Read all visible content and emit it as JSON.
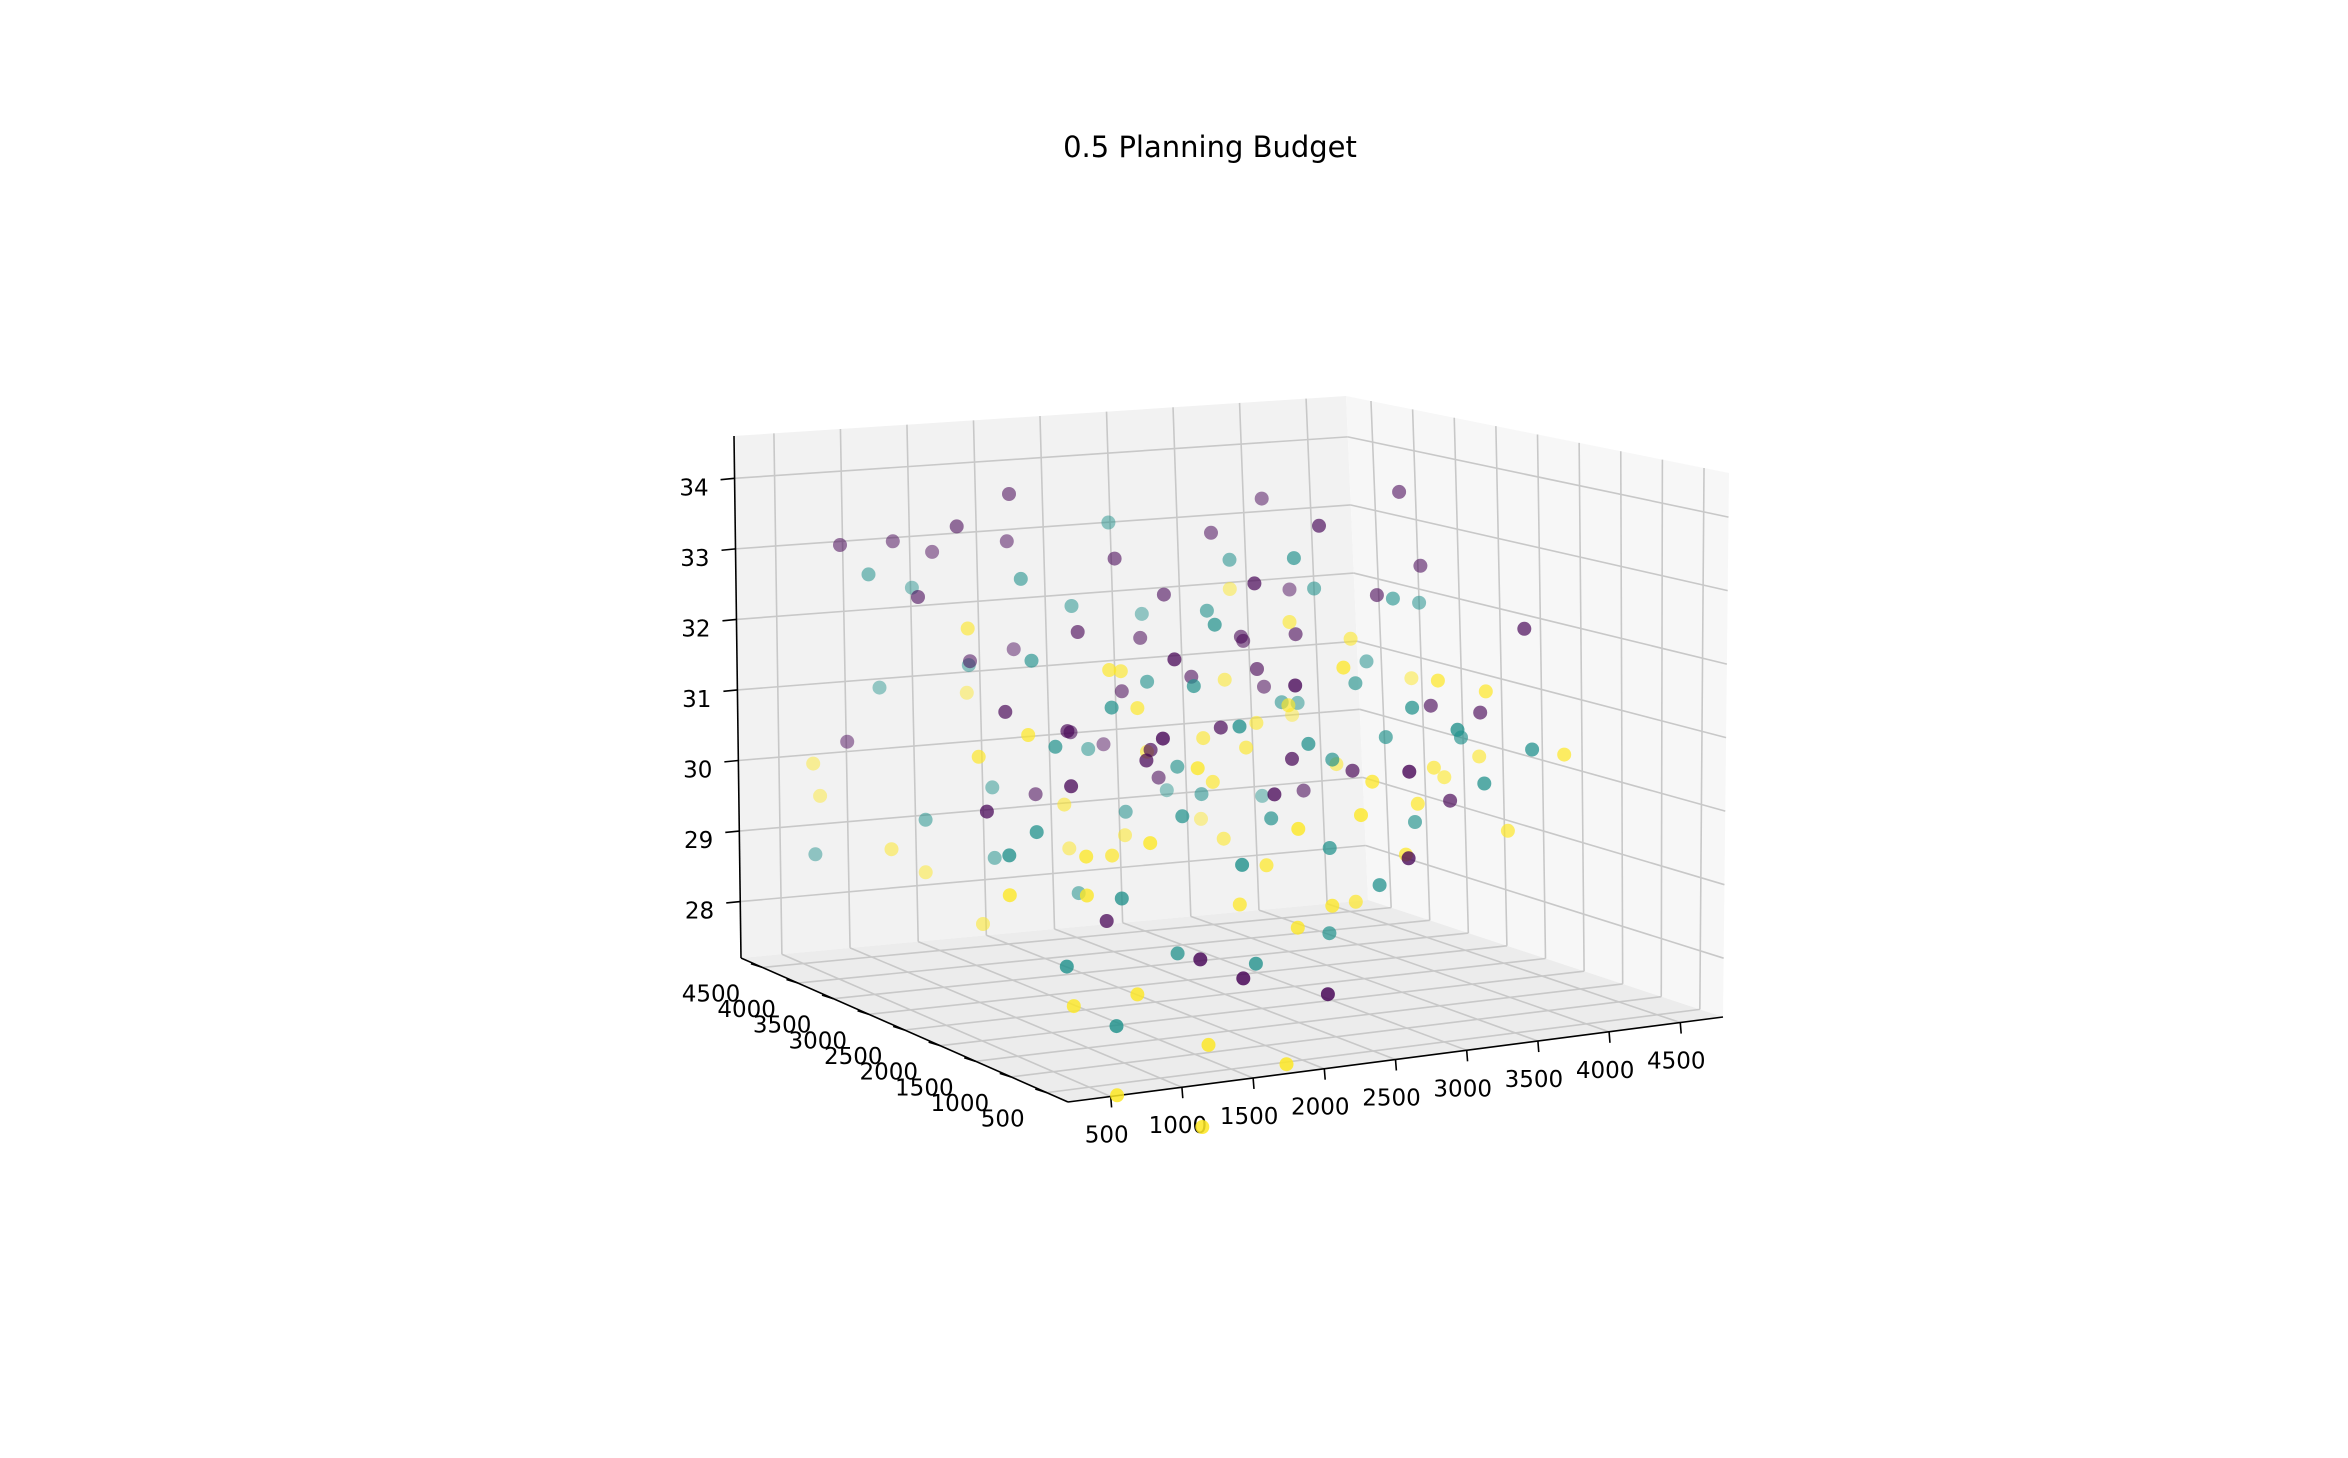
{
  "chart_data": {
    "type": "scatter",
    "title": "0.5 Planning Budget",
    "xlabel": "",
    "ylabel": "",
    "zlabel": "",
    "grid": true,
    "legend": "none",
    "xlim": [
      200,
      4800
    ],
    "ylim": [
      200,
      4800
    ],
    "zlim": [
      27.2,
      34.6
    ],
    "x_ticks": [
      "500",
      "1000",
      "1500",
      "2000",
      "2500",
      "3000",
      "3500",
      "4000",
      "4500"
    ],
    "y_ticks": [
      "500",
      "1000",
      "1500",
      "2000",
      "2500",
      "3000",
      "3500",
      "4000",
      "4500"
    ],
    "z_ticks": [
      "28",
      "29",
      "30",
      "31",
      "32",
      "33",
      "34"
    ],
    "colors": {
      "purple": "#440154",
      "teal": "#21918c",
      "yellow": "#fde725"
    },
    "points": [
      {
        "x": 1100,
        "y": 4300,
        "z": 33.0,
        "c": "purple"
      },
      {
        "x": 1500,
        "y": 4500,
        "z": 32.8,
        "c": "purple"
      },
      {
        "x": 2700,
        "y": 4300,
        "z": 33.1,
        "c": "teal"
      },
      {
        "x": 2300,
        "y": 4100,
        "z": 32.0,
        "c": "teal"
      },
      {
        "x": 1600,
        "y": 4200,
        "z": 31.3,
        "c": "purple"
      },
      {
        "x": 1700,
        "y": 4400,
        "z": 31.2,
        "c": "teal"
      },
      {
        "x": 3400,
        "y": 4200,
        "z": 32.9,
        "c": "purple"
      },
      {
        "x": 3900,
        "y": 4400,
        "z": 33.3,
        "c": "purple"
      },
      {
        "x": 3000,
        "y": 3800,
        "z": 31.0,
        "c": "purple"
      },
      {
        "x": 2600,
        "y": 4000,
        "z": 30.8,
        "c": "purple"
      },
      {
        "x": 3500,
        "y": 4000,
        "z": 31.4,
        "c": "purple"
      },
      {
        "x": 3300,
        "y": 3900,
        "z": 30.9,
        "c": "yellow"
      },
      {
        "x": 2800,
        "y": 4100,
        "z": 31.5,
        "c": "purple"
      },
      {
        "x": 1200,
        "y": 4100,
        "z": 29.2,
        "c": "teal"
      },
      {
        "x": 1800,
        "y": 4300,
        "z": 29.5,
        "c": "teal"
      },
      {
        "x": 1000,
        "y": 4200,
        "z": 28.8,
        "c": "yellow"
      },
      {
        "x": 1300,
        "y": 4300,
        "z": 28.4,
        "c": "yellow"
      },
      {
        "x": 1700,
        "y": 4100,
        "z": 28.6,
        "c": "teal"
      },
      {
        "x": 2300,
        "y": 4200,
        "z": 28.6,
        "c": "yellow"
      },
      {
        "x": 1500,
        "y": 3900,
        "z": 27.8,
        "c": "yellow"
      },
      {
        "x": 2400,
        "y": 4100,
        "z": 30.0,
        "c": "teal"
      },
      {
        "x": 2800,
        "y": 3900,
        "z": 29.6,
        "c": "purple"
      },
      {
        "x": 2500,
        "y": 3800,
        "z": 29.2,
        "c": "teal"
      },
      {
        "x": 2000,
        "y": 3700,
        "z": 29.4,
        "c": "yellow"
      },
      {
        "x": 2200,
        "y": 3900,
        "z": 28.1,
        "c": "teal"
      },
      {
        "x": 2600,
        "y": 4000,
        "z": 28.8,
        "c": "yellow"
      },
      {
        "x": 1900,
        "y": 3900,
        "z": 29.5,
        "c": "purple"
      },
      {
        "x": 3100,
        "y": 3600,
        "z": 28.8,
        "c": "yellow"
      },
      {
        "x": 3000,
        "y": 3700,
        "z": 29.4,
        "c": "teal"
      },
      {
        "x": 2000,
        "y": 3600,
        "z": 30.4,
        "c": "purple"
      },
      {
        "x": 2500,
        "y": 3500,
        "z": 30.1,
        "c": "yellow"
      },
      {
        "x": 3300,
        "y": 3500,
        "z": 30.4,
        "c": "yellow"
      },
      {
        "x": 3600,
        "y": 3700,
        "z": 30.6,
        "c": "teal"
      },
      {
        "x": 3200,
        "y": 3300,
        "z": 31.2,
        "c": "purple"
      },
      {
        "x": 3800,
        "y": 3600,
        "z": 32.2,
        "c": "teal"
      },
      {
        "x": 3500,
        "y": 3400,
        "z": 31.8,
        "c": "yellow"
      },
      {
        "x": 3600,
        "y": 3500,
        "z": 31.6,
        "c": "purple"
      },
      {
        "x": 4000,
        "y": 3500,
        "z": 31.5,
        "c": "yellow"
      },
      {
        "x": 4200,
        "y": 3300,
        "z": 32.1,
        "c": "teal"
      },
      {
        "x": 4500,
        "y": 3700,
        "z": 33.5,
        "c": "purple"
      },
      {
        "x": 4200,
        "y": 3500,
        "z": 32.1,
        "c": "purple"
      },
      {
        "x": 4700,
        "y": 3800,
        "z": 32.4,
        "c": "purple"
      },
      {
        "x": 4400,
        "y": 3200,
        "z": 30.6,
        "c": "purple"
      },
      {
        "x": 4300,
        "y": 3000,
        "z": 29.8,
        "c": "yellow"
      },
      {
        "x": 3900,
        "y": 2900,
        "z": 30.3,
        "c": "teal"
      },
      {
        "x": 3600,
        "y": 2800,
        "z": 29.9,
        "c": "purple"
      },
      {
        "x": 4100,
        "y": 2900,
        "z": 29.1,
        "c": "teal"
      },
      {
        "x": 4600,
        "y": 3400,
        "z": 29.5,
        "c": "yellow"
      },
      {
        "x": 4700,
        "y": 3100,
        "z": 30.5,
        "c": "purple"
      },
      {
        "x": 4500,
        "y": 3000,
        "z": 30.2,
        "c": "teal"
      },
      {
        "x": 4800,
        "y": 3300,
        "z": 29.8,
        "c": "yellow"
      },
      {
        "x": 4600,
        "y": 2600,
        "z": 29.0,
        "c": "yellow"
      },
      {
        "x": 4300,
        "y": 2800,
        "z": 29.4,
        "c": "purple"
      },
      {
        "x": 3800,
        "y": 3100,
        "z": 31.0,
        "c": "teal"
      },
      {
        "x": 3400,
        "y": 2700,
        "z": 30.1,
        "c": "teal"
      },
      {
        "x": 3200,
        "y": 2900,
        "z": 30.8,
        "c": "yellow"
      },
      {
        "x": 3000,
        "y": 2500,
        "z": 30.2,
        "c": "purple"
      },
      {
        "x": 2900,
        "y": 2600,
        "z": 29.4,
        "c": "teal"
      },
      {
        "x": 2700,
        "y": 3000,
        "z": 29.8,
        "c": "yellow"
      },
      {
        "x": 2600,
        "y": 2700,
        "z": 30.6,
        "c": "purple"
      },
      {
        "x": 2300,
        "y": 2500,
        "z": 31.2,
        "c": "teal"
      },
      {
        "x": 2000,
        "y": 2700,
        "z": 30.9,
        "c": "yellow"
      },
      {
        "x": 1900,
        "y": 2400,
        "z": 30.3,
        "c": "purple"
      },
      {
        "x": 2100,
        "y": 2300,
        "z": 29.6,
        "c": "teal"
      },
      {
        "x": 1700,
        "y": 2500,
        "z": 29.1,
        "c": "yellow"
      },
      {
        "x": 1500,
        "y": 2200,
        "z": 28.4,
        "c": "purple"
      },
      {
        "x": 1900,
        "y": 2000,
        "z": 28.0,
        "c": "teal"
      },
      {
        "x": 2400,
        "y": 2100,
        "z": 28.5,
        "c": "yellow"
      },
      {
        "x": 2700,
        "y": 2300,
        "z": 28.9,
        "c": "yellow"
      },
      {
        "x": 3100,
        "y": 2200,
        "z": 29.1,
        "c": "teal"
      },
      {
        "x": 3400,
        "y": 2100,
        "z": 28.6,
        "c": "teal"
      },
      {
        "x": 3700,
        "y": 2300,
        "z": 28.9,
        "c": "yellow"
      },
      {
        "x": 3900,
        "y": 2500,
        "z": 29.5,
        "c": "yellow"
      },
      {
        "x": 3500,
        "y": 1900,
        "z": 29.0,
        "c": "purple"
      },
      {
        "x": 2900,
        "y": 1800,
        "z": 28.5,
        "c": "yellow"
      },
      {
        "x": 2600,
        "y": 1700,
        "z": 28.3,
        "c": "yellow"
      },
      {
        "x": 2300,
        "y": 1700,
        "z": 27.9,
        "c": "teal"
      },
      {
        "x": 1800,
        "y": 1500,
        "z": 28.1,
        "c": "purple"
      },
      {
        "x": 1300,
        "y": 1400,
        "z": 27.8,
        "c": "yellow"
      },
      {
        "x": 1100,
        "y": 1300,
        "z": 27.5,
        "c": "teal"
      },
      {
        "x": 900,
        "y": 1500,
        "z": 27.7,
        "c": "yellow"
      },
      {
        "x": 1000,
        "y": 1100,
        "z": 26.8,
        "c": "yellow"
      },
      {
        "x": 1700,
        "y": 1200,
        "z": 27.2,
        "c": "yellow"
      },
      {
        "x": 1500,
        "y": 900,
        "z": 26.4,
        "c": "yellow"
      },
      {
        "x": 2200,
        "y": 1100,
        "z": 26.9,
        "c": "yellow"
      },
      {
        "x": 2600,
        "y": 1300,
        "z": 27.6,
        "c": "purple"
      },
      {
        "x": 2000,
        "y": 1300,
        "z": 27.9,
        "c": "purple"
      },
      {
        "x": 1400,
        "y": 1800,
        "z": 28.8,
        "c": "teal"
      },
      {
        "x": 1200,
        "y": 1900,
        "z": 29.3,
        "c": "yellow"
      },
      {
        "x": 900,
        "y": 2000,
        "z": 29.6,
        "c": "teal"
      },
      {
        "x": 700,
        "y": 2300,
        "z": 29.8,
        "c": "purple"
      },
      {
        "x": 800,
        "y": 2600,
        "z": 30.4,
        "c": "yellow"
      },
      {
        "x": 1100,
        "y": 2800,
        "z": 30.9,
        "c": "purple"
      },
      {
        "x": 1400,
        "y": 3000,
        "z": 31.5,
        "c": "teal"
      },
      {
        "x": 1100,
        "y": 3300,
        "z": 31.9,
        "c": "yellow"
      },
      {
        "x": 900,
        "y": 3600,
        "z": 32.3,
        "c": "purple"
      },
      {
        "x": 700,
        "y": 3900,
        "z": 32.6,
        "c": "teal"
      },
      {
        "x": 600,
        "y": 4100,
        "z": 33.0,
        "c": "purple"
      },
      {
        "x": 1300,
        "y": 3800,
        "z": 33.2,
        "c": "purple"
      },
      {
        "x": 1600,
        "y": 3500,
        "z": 32.5,
        "c": "teal"
      },
      {
        "x": 1900,
        "y": 3300,
        "z": 31.8,
        "c": "purple"
      },
      {
        "x": 2100,
        "y": 3100,
        "z": 31.3,
        "c": "yellow"
      },
      {
        "x": 2400,
        "y": 3300,
        "z": 31.1,
        "c": "teal"
      },
      {
        "x": 2200,
        "y": 2900,
        "z": 30.3,
        "c": "purple"
      },
      {
        "x": 2500,
        "y": 3100,
        "z": 30.0,
        "c": "teal"
      },
      {
        "x": 2800,
        "y": 3300,
        "z": 30.3,
        "c": "yellow"
      },
      {
        "x": 3000,
        "y": 3100,
        "z": 30.2,
        "c": "yellow"
      },
      {
        "x": 3200,
        "y": 3500,
        "z": 31.6,
        "c": "purple"
      },
      {
        "x": 2900,
        "y": 3400,
        "z": 32.0,
        "c": "teal"
      },
      {
        "x": 2700,
        "y": 3600,
        "z": 32.2,
        "c": "purple"
      },
      {
        "x": 2400,
        "y": 3700,
        "z": 32.7,
        "c": "purple"
      },
      {
        "x": 3300,
        "y": 3800,
        "z": 32.6,
        "c": "teal"
      },
      {
        "x": 1800,
        "y": 2700,
        "z": 31.4,
        "c": "yellow"
      },
      {
        "x": 1600,
        "y": 2900,
        "z": 30.6,
        "c": "purple"
      },
      {
        "x": 1300,
        "y": 2500,
        "z": 30.5,
        "c": "teal"
      },
      {
        "x": 1000,
        "y": 2300,
        "z": 30.7,
        "c": "yellow"
      },
      {
        "x": 600,
        "y": 1800,
        "z": 29.4,
        "c": "teal"
      },
      {
        "x": 500,
        "y": 1600,
        "z": 29.0,
        "c": "yellow"
      },
      {
        "x": 800,
        "y": 1400,
        "z": 28.2,
        "c": "teal"
      },
      {
        "x": 1100,
        "y": 1700,
        "z": 28.9,
        "c": "yellow"
      },
      {
        "x": 3700,
        "y": 4100,
        "z": 30.7,
        "c": "purple"
      },
      {
        "x": 4000,
        "y": 4200,
        "z": 30.4,
        "c": "teal"
      },
      {
        "x": 4100,
        "y": 3900,
        "z": 29.6,
        "c": "yellow"
      },
      {
        "x": 3800,
        "y": 3800,
        "z": 29.3,
        "c": "purple"
      },
      {
        "x": 3500,
        "y": 2600,
        "z": 28.2,
        "c": "yellow"
      },
      {
        "x": 3200,
        "y": 2400,
        "z": 27.9,
        "c": "teal"
      },
      {
        "x": 2000,
        "y": 4400,
        "z": 32.9,
        "c": "purple"
      },
      {
        "x": 1800,
        "y": 4000,
        "z": 33.6,
        "c": "purple"
      },
      {
        "x": 1400,
        "y": 4600,
        "z": 32.3,
        "c": "teal"
      },
      {
        "x": 3700,
        "y": 4500,
        "z": 32.0,
        "c": "yellow"
      },
      {
        "x": 4400,
        "y": 4000,
        "z": 31.0,
        "c": "teal"
      },
      {
        "x": 4800,
        "y": 4000,
        "z": 31.8,
        "c": "teal"
      },
      {
        "x": 4900,
        "y": 4300,
        "z": 30.6,
        "c": "yellow"
      },
      {
        "x": 4200,
        "y": 4600,
        "z": 31.9,
        "c": "purple"
      },
      {
        "x": 3100,
        "y": 4600,
        "z": 31.7,
        "c": "teal"
      },
      {
        "x": 2200,
        "y": 4700,
        "z": 31.3,
        "c": "purple"
      },
      {
        "x": 1900,
        "y": 4800,
        "z": 30.7,
        "c": "yellow"
      },
      {
        "x": 1200,
        "y": 4700,
        "z": 30.9,
        "c": "teal"
      },
      {
        "x": 900,
        "y": 4600,
        "z": 30.2,
        "c": "purple"
      },
      {
        "x": 800,
        "y": 4800,
        "z": 29.4,
        "c": "yellow"
      },
      {
        "x": 600,
        "y": 4500,
        "z": 28.7,
        "c": "teal"
      },
      {
        "x": 700,
        "y": 4700,
        "z": 29.9,
        "c": "yellow"
      },
      {
        "x": 2900,
        "y": 4800,
        "z": 29.8,
        "c": "purple"
      },
      {
        "x": 3300,
        "y": 4700,
        "z": 29.1,
        "c": "teal"
      },
      {
        "x": 3600,
        "y": 4800,
        "z": 28.6,
        "c": "yellow"
      },
      {
        "x": 4000,
        "y": 4700,
        "z": 28.9,
        "c": "teal"
      },
      {
        "x": 4300,
        "y": 4800,
        "z": 30.0,
        "c": "yellow"
      },
      {
        "x": 2600,
        "y": 2000,
        "z": 29.9,
        "c": "purple"
      },
      {
        "x": 2900,
        "y": 2100,
        "z": 30.5,
        "c": "teal"
      },
      {
        "x": 3300,
        "y": 2000,
        "z": 30.0,
        "c": "yellow"
      },
      {
        "x": 3700,
        "y": 2200,
        "z": 30.9,
        "c": "teal"
      },
      {
        "x": 4000,
        "y": 2400,
        "z": 31.2,
        "c": "yellow"
      },
      {
        "x": 4400,
        "y": 2500,
        "z": 31.0,
        "c": "yellow"
      },
      {
        "x": 4800,
        "y": 2700,
        "z": 31.8,
        "c": "purple"
      },
      {
        "x": 4100,
        "y": 2000,
        "z": 29.9,
        "c": "teal"
      },
      {
        "x": 4500,
        "y": 2100,
        "z": 30.3,
        "c": "teal"
      },
      {
        "x": 4900,
        "y": 2400,
        "z": 30.1,
        "c": "yellow"
      },
      {
        "x": 2100,
        "y": 1500,
        "z": 29.2,
        "c": "teal"
      },
      {
        "x": 2500,
        "y": 1500,
        "z": 29.6,
        "c": "yellow"
      },
      {
        "x": 3000,
        "y": 1600,
        "z": 29.7,
        "c": "yellow"
      },
      {
        "x": 3400,
        "y": 1700,
        "z": 30.2,
        "c": "purple"
      },
      {
        "x": 3800,
        "y": 1800,
        "z": 30.7,
        "c": "teal"
      },
      {
        "x": 1500,
        "y": 1600,
        "z": 29.5,
        "c": "yellow"
      },
      {
        "x": 1200,
        "y": 2100,
        "z": 30.1,
        "c": "purple"
      },
      {
        "x": 1600,
        "y": 2300,
        "z": 31.0,
        "c": "teal"
      },
      {
        "x": 2000,
        "y": 2200,
        "z": 31.6,
        "c": "purple"
      },
      {
        "x": 2400,
        "y": 2400,
        "z": 32.0,
        "c": "teal"
      },
      {
        "x": 2800,
        "y": 2600,
        "z": 32.5,
        "c": "purple"
      },
      {
        "x": 3200,
        "y": 2800,
        "z": 32.8,
        "c": "teal"
      },
      {
        "x": 3500,
        "y": 3000,
        "z": 33.2,
        "c": "purple"
      },
      {
        "x": 2000,
        "y": 1900,
        "z": 30.3,
        "c": "yellow"
      },
      {
        "x": 1700,
        "y": 1800,
        "z": 30.7,
        "c": "purple"
      },
      {
        "x": 2300,
        "y": 1900,
        "z": 30.8,
        "c": "teal"
      },
      {
        "x": 2700,
        "y": 1900,
        "z": 31.3,
        "c": "purple"
      },
      {
        "x": 3100,
        "y": 2000,
        "z": 31.5,
        "c": "yellow"
      }
    ]
  }
}
